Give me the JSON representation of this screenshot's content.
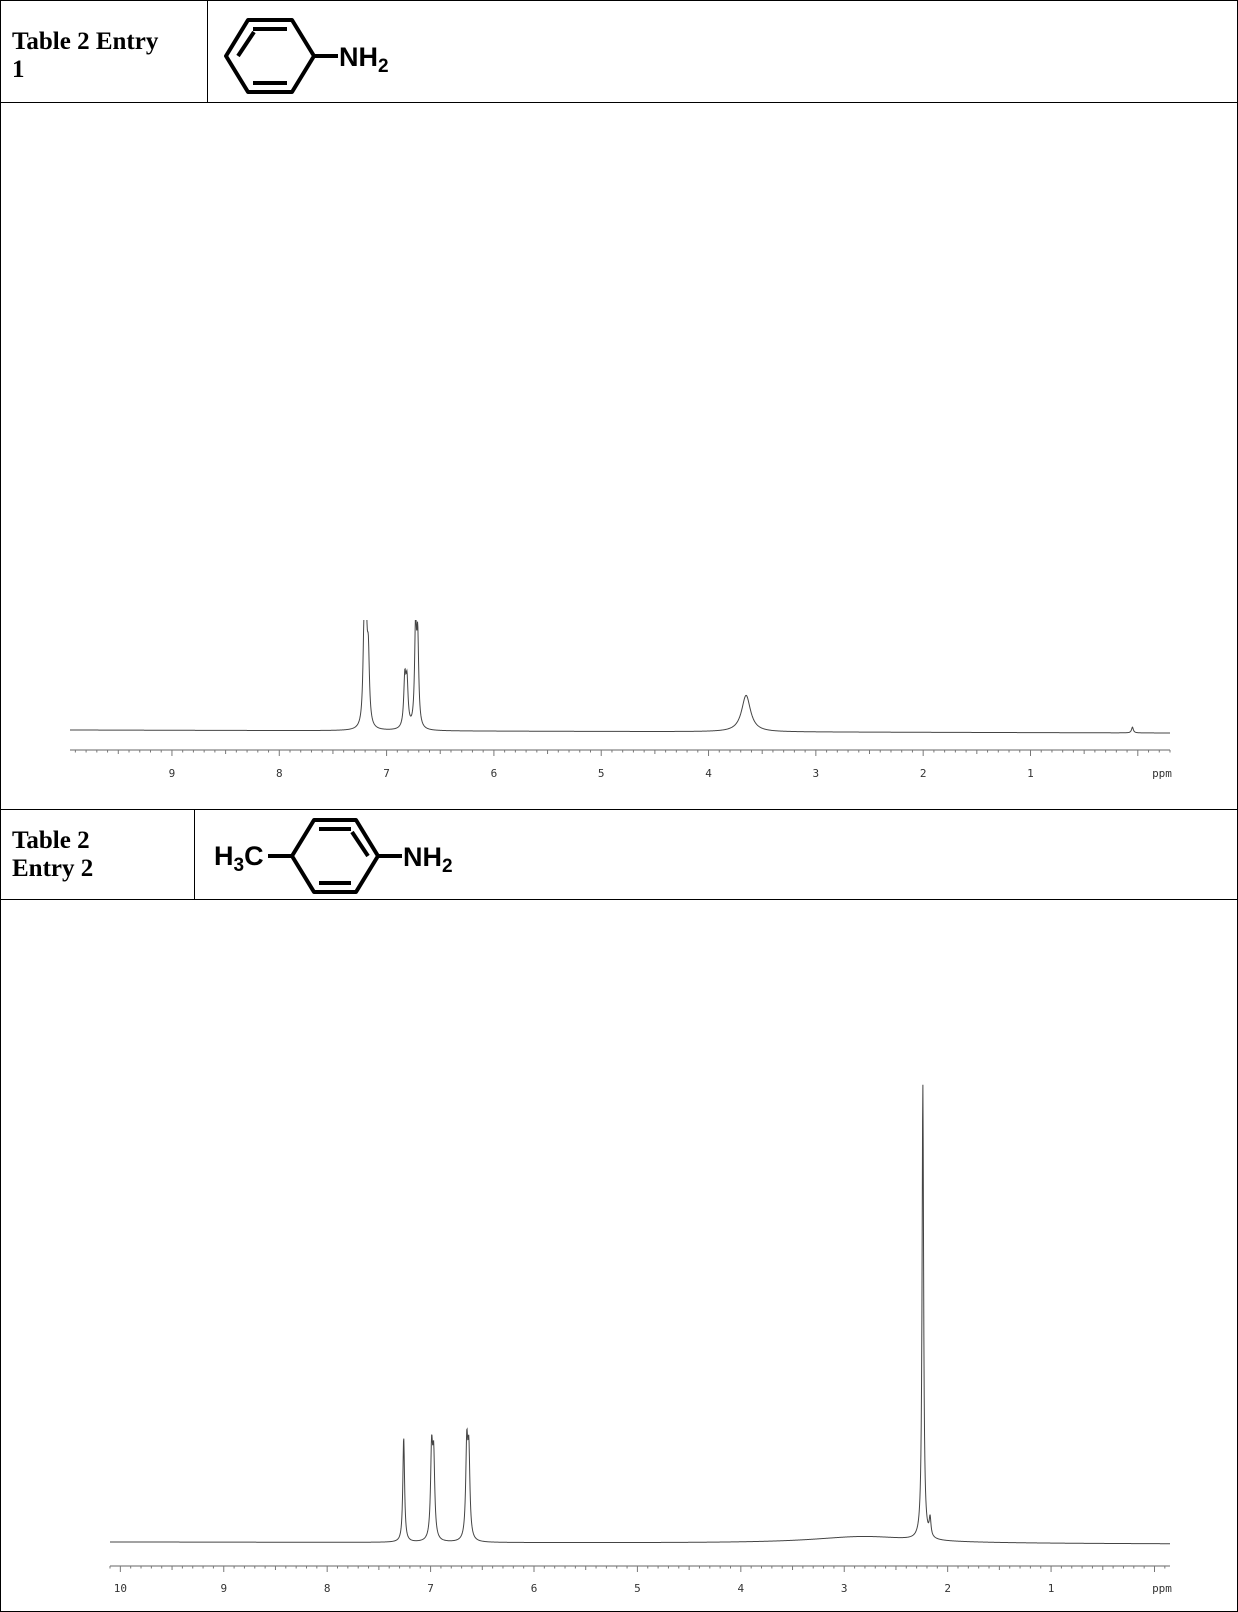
{
  "entries": [
    {
      "label_lines": [
        "Table 2 Entry",
        "1"
      ],
      "structure": {
        "left_group": "",
        "right_group": "NH",
        "right_sub": "2"
      },
      "chart_data": {
        "type": "line",
        "title": "",
        "xlabel": "ppm",
        "ylabel": "",
        "xlim": [
          9.95,
          -0.3
        ],
        "x_reversed": true,
        "grid": false,
        "x_ticks": [
          9,
          8,
          7,
          6,
          5,
          4,
          3,
          2,
          1
        ],
        "tick_labels": [
          "9",
          "8",
          "7",
          "6",
          "5",
          "4",
          "3",
          "2",
          "1"
        ],
        "unit_label": "ppm",
        "ylim": [
          0,
          1
        ],
        "peaks": [
          {
            "ppm": 7.21,
            "height": 0.93,
            "width": 0.012
          },
          {
            "ppm": 7.19,
            "height": 0.9,
            "width": 0.012
          },
          {
            "ppm": 7.17,
            "height": 0.68,
            "width": 0.012
          },
          {
            "ppm": 6.83,
            "height": 0.5,
            "width": 0.012
          },
          {
            "ppm": 6.81,
            "height": 0.46,
            "width": 0.012
          },
          {
            "ppm": 6.73,
            "height": 1.0,
            "width": 0.011
          },
          {
            "ppm": 6.71,
            "height": 0.88,
            "width": 0.011
          },
          {
            "ppm": 3.65,
            "height": 0.38,
            "width": 0.05
          },
          {
            "ppm": 0.05,
            "height": 0.06,
            "width": 0.01
          }
        ]
      }
    },
    {
      "label_lines": [
        "Table 2",
        "Entry 2"
      ],
      "structure": {
        "left_group": "H",
        "left_sub": "3",
        "left_tail": "C",
        "right_group": "NH",
        "right_sub": "2"
      },
      "chart_data": {
        "type": "line",
        "title": "",
        "xlabel": "ppm",
        "ylabel": "",
        "xlim": [
          10.1,
          -0.15
        ],
        "x_reversed": true,
        "grid": false,
        "x_ticks": [
          10,
          9,
          8,
          7,
          6,
          5,
          4,
          3,
          2,
          1
        ],
        "tick_labels": [
          "10",
          "9",
          "8",
          "7",
          "6",
          "5",
          "4",
          "3",
          "2",
          "1"
        ],
        "unit_label": "ppm",
        "ylim": [
          0,
          1
        ],
        "peaks": [
          {
            "ppm": 7.26,
            "height": 0.23,
            "width": 0.01
          },
          {
            "ppm": 6.99,
            "height": 0.19,
            "width": 0.012
          },
          {
            "ppm": 6.97,
            "height": 0.17,
            "width": 0.012
          },
          {
            "ppm": 6.65,
            "height": 0.2,
            "width": 0.012
          },
          {
            "ppm": 6.63,
            "height": 0.18,
            "width": 0.012
          },
          {
            "ppm": 2.81,
            "height": 0.015,
            "width": 0.6
          },
          {
            "ppm": 2.24,
            "height": 1.0,
            "width": 0.009
          },
          {
            "ppm": 2.17,
            "height": 0.04,
            "width": 0.01
          }
        ]
      }
    }
  ]
}
